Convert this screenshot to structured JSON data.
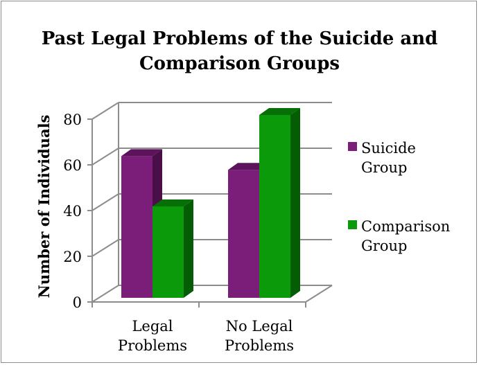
{
  "chart_data": {
    "type": "bar",
    "bar_style": "3d-clustered-column",
    "title": "Past Legal Problems of the Suicide and Comparison Groups",
    "title_lines": [
      "Past Legal Problems of the Suicide and",
      "Comparison Groups"
    ],
    "ylabel": "Number of Individuals",
    "xlabel": "",
    "ylim": [
      0,
      80
    ],
    "yticks": [
      0,
      20,
      40,
      60,
      80
    ],
    "grid": true,
    "legend_position": "right",
    "categories": [
      {
        "lines": [
          "Legal",
          "Problems"
        ]
      },
      {
        "lines": [
          "No Legal",
          "Problems"
        ]
      }
    ],
    "series": [
      {
        "name_lines": [
          "Suicide",
          "Group"
        ],
        "color": "#7b1e7a",
        "top_color": "#5c135b",
        "side_color": "#4a0f49",
        "values": [
          62,
          56
        ]
      },
      {
        "name_lines": [
          "Comparison",
          "Group"
        ],
        "color": "#0a9a0a",
        "top_color": "#067006",
        "side_color": "#045d04",
        "values": [
          40,
          80
        ]
      }
    ]
  }
}
